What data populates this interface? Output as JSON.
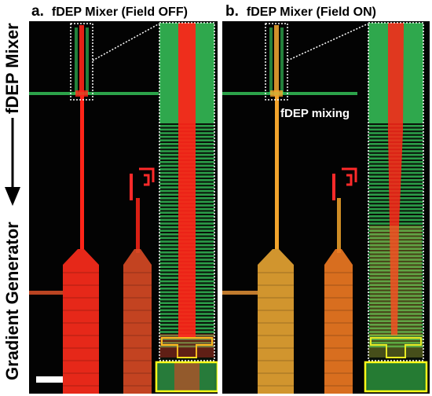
{
  "side_labels": {
    "top": "fDEP Mixer",
    "bottom": "Gradient Generator"
  },
  "panels": [
    {
      "letter": "a.",
      "title": "fDEP Mixer (Field OFF)",
      "channel_color": "#ff2418",
      "mixed": false
    },
    {
      "letter": "b.",
      "title": "fDEP Mixer (Field ON)",
      "channel_color": "#f2a42c",
      "mixed": true,
      "annotation": "fDEP mixing"
    }
  ],
  "colors": {
    "background": "#030303",
    "red_fluorescence": "#ff2418",
    "green_fluorescence": "#3ee86a",
    "mixed_fluorescence": "#e8a030",
    "inset_box": "#ffffff",
    "highlight_box": "#ffff1a"
  }
}
